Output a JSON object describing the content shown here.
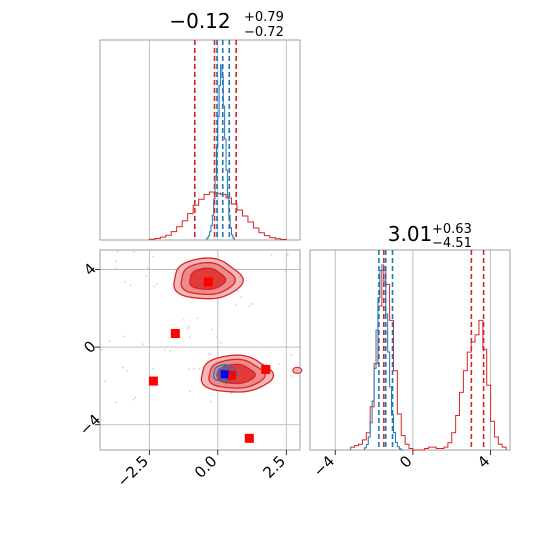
{
  "chart_data": [
    {
      "type": "histogram",
      "panel": "marginal-param-1",
      "title_main": "−0.12",
      "title_plus": "+0.79",
      "title_minus": "−0.72",
      "xlim": [
        -4.3,
        3.0
      ],
      "grid": true,
      "series": [
        {
          "color": "#d62728",
          "bins": [
            -2.5,
            -2.3,
            -2.1,
            -1.9,
            -1.7,
            -1.5,
            -1.3,
            -1.1,
            -0.9,
            -0.7,
            -0.5,
            -0.3,
            -0.1,
            0.1,
            0.3,
            0.5,
            0.7,
            0.9,
            1.1,
            1.3,
            1.5,
            1.7,
            1.9,
            2.1,
            2.3,
            2.5
          ],
          "counts": [
            0.3,
            0.6,
            1.2,
            2.0,
            3.5,
            5.5,
            8.0,
            11.0,
            14.5,
            17.0,
            19.0,
            20.0,
            19.5,
            19.0,
            17.5,
            15.0,
            12.5,
            10.0,
            7.5,
            5.0,
            3.0,
            1.8,
            1.0,
            0.5,
            0.2
          ],
          "quantiles": [
            -0.84,
            -0.12,
            0.67
          ]
        },
        {
          "color": "#1f77b4",
          "bins": [
            -0.4,
            -0.35,
            -0.3,
            -0.25,
            -0.2,
            -0.15,
            -0.1,
            -0.05,
            0.0,
            0.05,
            0.1,
            0.15,
            0.2,
            0.25,
            0.3,
            0.35,
            0.4,
            0.45,
            0.5,
            0.55,
            0.6
          ],
          "counts": [
            2,
            4,
            8,
            14,
            24,
            40,
            62,
            90,
            120,
            150,
            170,
            158,
            130,
            98,
            68,
            42,
            24,
            12,
            5,
            2
          ],
          "quantiles": [
            -0.03,
            0.18,
            0.42
          ]
        }
      ]
    },
    {
      "type": "contour-scatter",
      "panel": "joint",
      "xlim": [
        -4.3,
        3.0
      ],
      "ylim": [
        -5.3,
        5.0
      ],
      "x_ticks": [
        "−2.5",
        "0.0",
        "2.5"
      ],
      "x_tick_values": [
        -2.5,
        0.0,
        2.5
      ],
      "y_ticks": [
        "4",
        "0",
        "−4"
      ],
      "y_tick_values": [
        4,
        0,
        -4
      ],
      "grid": true,
      "red_modes": [
        {
          "center": [
            -0.4,
            3.5
          ],
          "sx": 1.25,
          "sy": 1.05
        },
        {
          "center": [
            0.65,
            -1.4
          ],
          "sx": 1.3,
          "sy": 0.95
        }
      ],
      "blue_mode": {
        "center": [
          0.25,
          -1.35
        ],
        "sx": 0.42,
        "sy": 0.42
      },
      "red_points": [
        {
          "x": -0.35,
          "y": 3.35
        },
        {
          "x": -1.55,
          "y": 0.7
        },
        {
          "x": -2.35,
          "y": -1.75
        },
        {
          "x": 0.5,
          "y": -1.45
        },
        {
          "x": 1.75,
          "y": -1.15
        },
        {
          "x": 1.15,
          "y": -4.7
        }
      ],
      "blue_point": {
        "x": 0.25,
        "y": -1.4
      }
    },
    {
      "type": "histogram",
      "panel": "marginal-param-2",
      "title_main": "3.01",
      "title_plus": "+0.63",
      "title_minus": "−4.51",
      "xlim": [
        -5.3,
        5.0
      ],
      "x_ticks": [
        "−4",
        "0",
        "4"
      ],
      "x_tick_values": [
        -4,
        0,
        4
      ],
      "grid": true,
      "series": [
        {
          "color": "#d62728",
          "bins": [
            -3.2,
            -3.0,
            -2.8,
            -2.6,
            -2.4,
            -2.2,
            -2.0,
            -1.8,
            -1.6,
            -1.4,
            -1.2,
            -1.0,
            -0.8,
            -0.6,
            -0.4,
            -0.2,
            0.0,
            0.2,
            0.4,
            0.6,
            0.8,
            1.0,
            1.2,
            1.4,
            1.6,
            1.8,
            2.0,
            2.2,
            2.4,
            2.6,
            2.8,
            3.0,
            3.2,
            3.4,
            3.6,
            3.8,
            4.0,
            4.2,
            4.4,
            4.6,
            4.8
          ],
          "counts": [
            2,
            3,
            4,
            7,
            12,
            30,
            60,
            100,
            125,
            115,
            90,
            55,
            25,
            10,
            4,
            1,
            0,
            0,
            0,
            1,
            2,
            2,
            1,
            1,
            2,
            5,
            12,
            24,
            40,
            55,
            68,
            75,
            80,
            90,
            70,
            45,
            20,
            9,
            4,
            2
          ],
          "quantiles": [
            -1.5,
            3.01,
            3.64
          ]
        },
        {
          "color": "#1f77b4",
          "bins": [
            -2.5,
            -2.4,
            -2.3,
            -2.2,
            -2.1,
            -2.0,
            -1.9,
            -1.8,
            -1.7,
            -1.6,
            -1.5,
            -1.4,
            -1.3,
            -1.2,
            -1.1,
            -1.0,
            -0.9,
            -0.8,
            -0.7,
            -0.6,
            -0.5
          ],
          "counts": [
            2,
            5,
            12,
            25,
            45,
            75,
            110,
            140,
            165,
            170,
            155,
            125,
            90,
            58,
            32,
            16,
            7,
            3,
            1,
            0
          ],
          "quantiles": [
            -1.75,
            -1.4,
            -1.05
          ]
        }
      ]
    }
  ]
}
